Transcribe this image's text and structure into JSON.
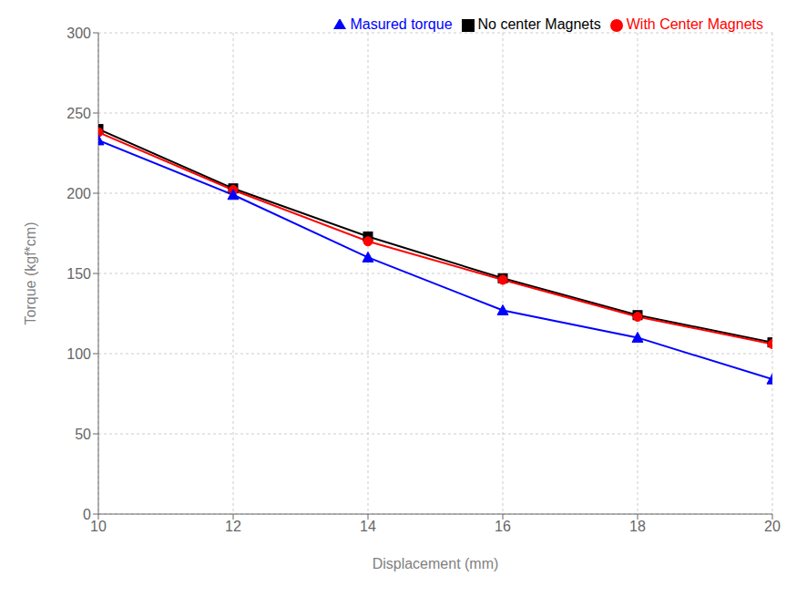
{
  "chart_data": {
    "type": "line",
    "xlabel": "Displacement (mm)",
    "ylabel": "Torque (kgf*cm)",
    "x": [
      10,
      12,
      14,
      16,
      18,
      20
    ],
    "series": [
      {
        "name": "No center Magnets",
        "color": "#000000",
        "marker": "square",
        "values": [
          240,
          203,
          173,
          147,
          124,
          107
        ]
      },
      {
        "name": "With Center Magnets",
        "color": "#ff0000",
        "marker": "circle",
        "values": [
          238,
          202,
          170,
          146,
          123,
          106
        ]
      },
      {
        "name": "Masured torque",
        "color": "#0000ff",
        "marker": "triangle",
        "values": [
          233,
          199,
          160,
          127,
          110,
          84
        ]
      }
    ],
    "xlim": [
      10,
      20
    ],
    "ylim": [
      0,
      300
    ],
    "xticks": [
      10,
      12,
      14,
      16,
      18,
      20
    ],
    "yticks": [
      0,
      50,
      100,
      150,
      200,
      250,
      300
    ],
    "grid": true,
    "legend": "upper right"
  }
}
